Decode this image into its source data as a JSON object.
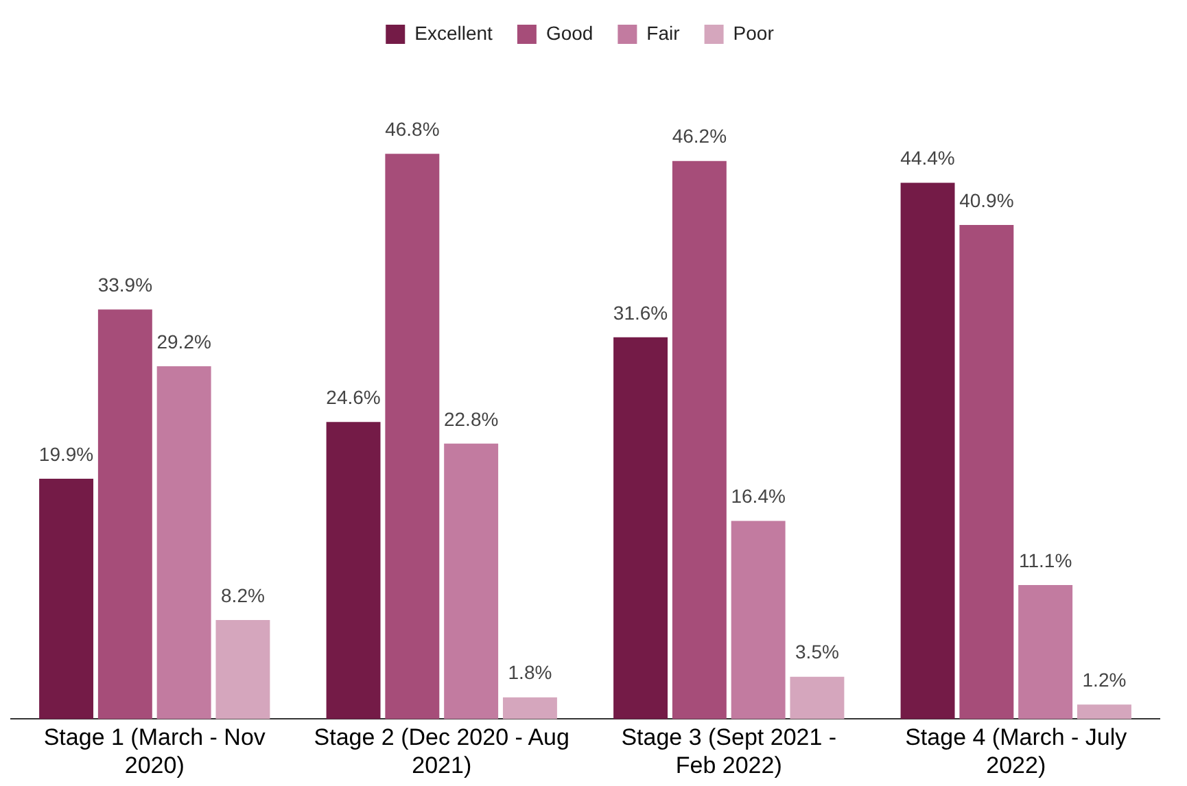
{
  "chart_data": {
    "type": "bar",
    "categories": [
      "Stage 1 (March - Nov 2020)",
      "Stage 2 (Dec 2020 - Aug 2021)",
      "Stage 3 (Sept 2021 - Feb 2022)",
      "Stage 4 (March - July 2022)"
    ],
    "series": [
      {
        "name": "Excellent",
        "color": "#741b47",
        "values": [
          19.9,
          24.6,
          31.6,
          44.4
        ],
        "value_labels": [
          "19.9%",
          "24.6%",
          "31.6%",
          "44.4%"
        ]
      },
      {
        "name": "Good",
        "color": "#a64d79",
        "values": [
          33.9,
          46.8,
          46.2,
          40.9
        ],
        "value_labels": [
          "33.9%",
          "46.8%",
          "46.2%",
          "40.9%"
        ]
      },
      {
        "name": "Fair",
        "color": "#c27ba0",
        "values": [
          29.2,
          22.8,
          16.4,
          11.1
        ],
        "value_labels": [
          "29.2%",
          "22.8%",
          "16.4%",
          "11.1%"
        ]
      },
      {
        "name": "Poor",
        "color": "#d5a6bd",
        "values": [
          8.2,
          1.8,
          3.5,
          1.2
        ],
        "value_labels": [
          "8.2%",
          "1.8%",
          "3.5%",
          "1.2%"
        ]
      }
    ],
    "legend": "top",
    "grid": false
  }
}
